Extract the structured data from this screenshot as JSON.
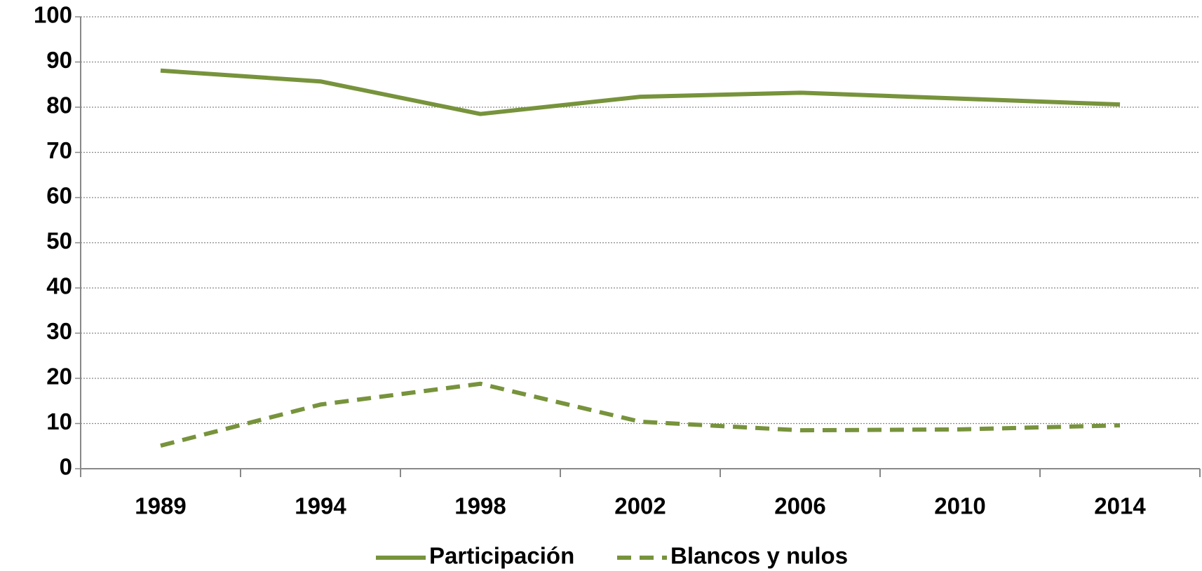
{
  "chart_data": {
    "type": "line",
    "categories": [
      "1989",
      "1994",
      "1998",
      "2002",
      "2006",
      "2010",
      "2014"
    ],
    "series": [
      {
        "name": "Participación",
        "color": "#77933c",
        "line_style": "solid",
        "values": [
          88.1,
          85.7,
          78.5,
          82.3,
          83.2,
          81.9,
          80.6
        ]
      },
      {
        "name": "Blancos y nulos",
        "color": "#77933c",
        "line_style": "dashed",
        "values": [
          5.1,
          14.2,
          18.8,
          10.4,
          8.5,
          8.7,
          9.6
        ]
      }
    ],
    "ylim": [
      0,
      100
    ],
    "yticks": [
      0,
      10,
      20,
      30,
      40,
      50,
      60,
      70,
      80,
      90,
      100
    ],
    "grid": true,
    "legend": "bottom"
  }
}
